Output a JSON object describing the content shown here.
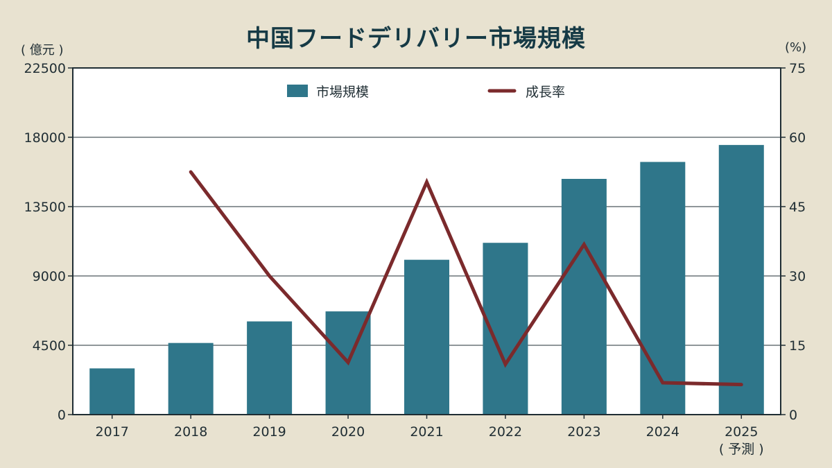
{
  "title": "中国フードデリバリー市場規模",
  "left_unit": "( 億元 )",
  "right_unit": "(%)",
  "colors": {
    "bar": "#2f768a",
    "line": "#7b2a2c",
    "background": "#e8e2d0",
    "plot_bg": "#ffffff",
    "text": "#1f2d33",
    "title": "#163a45"
  },
  "chart_data": {
    "type": "bar",
    "title": "中国フードデリバリー市場規模",
    "categories": [
      "2017",
      "2018",
      "2019",
      "2020",
      "2021",
      "2022",
      "2023",
      "2024",
      "2025"
    ],
    "category_sublabels": [
      "",
      "",
      "",
      "",
      "",
      "",
      "",
      "",
      "( 予測 )"
    ],
    "series": [
      {
        "name": "市場規模",
        "type": "bar",
        "axis": "left",
        "values": [
          3000,
          4650,
          6050,
          6700,
          10050,
          11150,
          15300,
          16400,
          17500
        ]
      },
      {
        "name": "成長率",
        "type": "line",
        "axis": "right",
        "values": [
          null,
          52.5,
          30,
          11.3,
          50.3,
          10.9,
          36.8,
          6.9,
          6.5
        ]
      }
    ],
    "y_left": {
      "label": "( 億元 )",
      "min": 0,
      "max": 22500,
      "ticks": [
        0,
        4500,
        9000,
        13500,
        18000,
        22500
      ]
    },
    "y_right": {
      "label": "(%)",
      "min": 0,
      "max": 75,
      "ticks": [
        0,
        15,
        30,
        45,
        60,
        75
      ]
    },
    "legend": {
      "placement": "top-center",
      "entries": [
        "市場規模",
        "成長率"
      ]
    },
    "grid": true
  }
}
